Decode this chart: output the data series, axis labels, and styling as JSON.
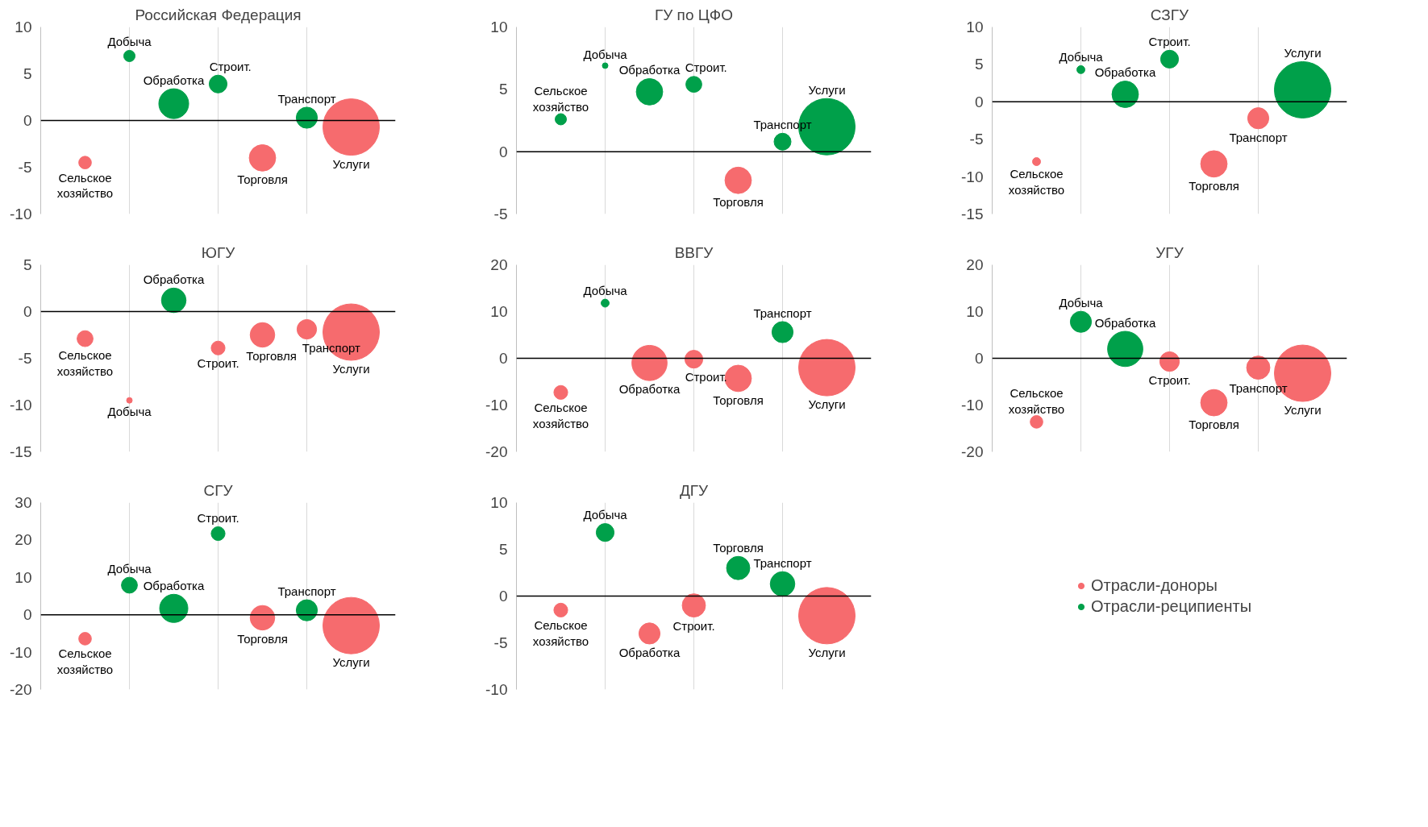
{
  "chart_data": [
    {
      "type": "bubble",
      "title": "Российская Федерация",
      "categories": [
        "Сельское\nхозяйство",
        "Добыча",
        "Обработка",
        "Строит.",
        "Торговля",
        "Транспорт",
        "Услуги"
      ],
      "ylim": [
        -10,
        10
      ],
      "yticks": [
        -10,
        -5,
        0,
        5,
        10
      ],
      "grid": "x",
      "tick_labels": "y",
      "marker": "circle",
      "ref_lines": [
        {
          "axis": "y",
          "value": 0
        }
      ],
      "series": [
        {
          "color": "#f66b6e",
          "values": [
            -4.5,
            null,
            null,
            null,
            -4.0,
            null,
            -0.7
          ],
          "sizes": [
            0.05,
            null,
            null,
            null,
            0.22,
            null,
            1
          ]
        },
        {
          "color": "#00a04a",
          "values": [
            null,
            6.9,
            1.8,
            3.9,
            null,
            0.3,
            null
          ],
          "sizes": [
            null,
            0.04,
            0.28,
            0.1,
            null,
            0.14,
            null
          ]
        }
      ]
    },
    {
      "type": "bubble",
      "title": "ГУ по ЦФО",
      "categories": [
        "Сельское\nхозяйство",
        "Добыча",
        "Обработка",
        "Строит.",
        "Торговля",
        "Транспорт",
        "Услуги"
      ],
      "ylim": [
        -5,
        10
      ],
      "yticks": [
        -5,
        0,
        5,
        10
      ],
      "grid": "x",
      "tick_labels": "y",
      "marker": "circle",
      "ref_lines": [
        {
          "axis": "y",
          "value": 0
        }
      ],
      "series": [
        {
          "color": "#f66b6e",
          "values": [
            null,
            null,
            null,
            null,
            -2.3,
            null,
            null
          ],
          "sizes": [
            null,
            null,
            null,
            null,
            0.22,
            null,
            null
          ]
        },
        {
          "color": "#00a04a",
          "values": [
            2.6,
            6.9,
            4.8,
            5.4,
            null,
            0.8,
            2.0
          ],
          "sizes": [
            0.04,
            0.01,
            0.22,
            0.08,
            null,
            0.09,
            1
          ]
        }
      ]
    },
    {
      "type": "bubble",
      "title": "СЗГУ",
      "categories": [
        "Сельское\nхозяйство",
        "Добыча",
        "Обработка",
        "Строит.",
        "Торговля",
        "Транспорт",
        "Услуги"
      ],
      "ylim": [
        -15,
        10
      ],
      "yticks": [
        -15,
        -10,
        -5,
        0,
        5,
        10
      ],
      "grid": "x",
      "tick_labels": "y",
      "marker": "circle",
      "ref_lines": [
        {
          "axis": "y",
          "value": 0
        }
      ],
      "series": [
        {
          "color": "#f66b6e",
          "values": [
            -8.0,
            null,
            null,
            null,
            -8.3,
            -2.2,
            null
          ],
          "sizes": [
            0.02,
            null,
            null,
            null,
            0.22,
            0.14,
            null
          ]
        },
        {
          "color": "#00a04a",
          "values": [
            null,
            4.3,
            1.0,
            5.7,
            null,
            null,
            1.6
          ],
          "sizes": [
            null,
            0.02,
            0.22,
            0.1,
            null,
            null,
            1
          ]
        }
      ]
    },
    {
      "type": "bubble",
      "title": "ЮГУ",
      "categories": [
        "Сельское\nхозяйство",
        "Добыча",
        "Обработка",
        "Строит.",
        "Торговля",
        "Транспорт",
        "Услуги"
      ],
      "ylim": [
        -15,
        5
      ],
      "yticks": [
        -15,
        -10,
        -5,
        0,
        5
      ],
      "grid": "x",
      "tick_labels": "y",
      "marker": "circle",
      "ref_lines": [
        {
          "axis": "y",
          "value": 0
        }
      ],
      "series": [
        {
          "color": "#f66b6e",
          "values": [
            -2.9,
            -9.5,
            null,
            -3.9,
            -2.5,
            -1.9,
            -2.2
          ],
          "sizes": [
            0.08,
            0.01,
            null,
            0.06,
            0.19,
            0.12,
            1
          ]
        },
        {
          "color": "#00a04a",
          "values": [
            null,
            null,
            1.2,
            null,
            null,
            null,
            null
          ],
          "sizes": [
            null,
            null,
            0.19,
            null,
            null,
            null,
            null
          ]
        }
      ]
    },
    {
      "type": "bubble",
      "title": "ВВГУ",
      "categories": [
        "Сельское\nхозяйство",
        "Добыча",
        "Обработка",
        "Строит.",
        "Торговля",
        "Транспорт",
        "Услуги"
      ],
      "ylim": [
        -20,
        20
      ],
      "yticks": [
        -20,
        -10,
        0,
        10,
        20
      ],
      "grid": "x",
      "tick_labels": "y",
      "marker": "circle",
      "ref_lines": [
        {
          "axis": "y",
          "value": 0
        }
      ],
      "series": [
        {
          "color": "#f66b6e",
          "values": [
            -7.3,
            null,
            -1.0,
            -0.2,
            -4.3,
            null,
            -2.0
          ],
          "sizes": [
            0.06,
            null,
            0.39,
            0.1,
            0.22,
            null,
            1
          ]
        },
        {
          "color": "#00a04a",
          "values": [
            null,
            11.8,
            null,
            null,
            null,
            5.6,
            null
          ],
          "sizes": [
            null,
            0.02,
            null,
            null,
            null,
            0.14,
            null
          ]
        }
      ]
    },
    {
      "type": "bubble",
      "title": "УГУ",
      "categories": [
        "Сельское\nхозяйство",
        "Добыча",
        "Обработка",
        "Строит.",
        "Торговля",
        "Транспорт",
        "Услуги"
      ],
      "ylim": [
        -20,
        20
      ],
      "yticks": [
        -20,
        -10,
        0,
        10,
        20
      ],
      "grid": "x",
      "tick_labels": "y",
      "marker": "circle",
      "ref_lines": [
        {
          "axis": "y",
          "value": 0
        }
      ],
      "series": [
        {
          "color": "#f66b6e",
          "values": [
            -13.6,
            null,
            null,
            -0.7,
            -9.5,
            -2.0,
            -3.2
          ],
          "sizes": [
            0.05,
            null,
            null,
            0.12,
            0.22,
            0.17,
            1
          ]
        },
        {
          "color": "#00a04a",
          "values": [
            null,
            7.8,
            2.0,
            null,
            null,
            null,
            null
          ],
          "sizes": [
            null,
            0.14,
            0.39,
            null,
            null,
            null,
            null
          ]
        }
      ]
    },
    {
      "type": "bubble",
      "title": "СГУ",
      "categories": [
        "Сельское\nхозяйство",
        "Добыча",
        "Обработка",
        "Строит.",
        "Торговля",
        "Транспорт",
        "Услуги"
      ],
      "ylim": [
        -20,
        30
      ],
      "yticks": [
        -20,
        -10,
        0,
        10,
        20,
        30
      ],
      "grid": "x",
      "tick_labels": "y",
      "marker": "circle",
      "ref_lines": [
        {
          "axis": "y",
          "value": 0
        }
      ],
      "series": [
        {
          "color": "#f66b6e",
          "values": [
            -6.4,
            null,
            null,
            null,
            -0.8,
            null,
            -2.9
          ],
          "sizes": [
            0.05,
            null,
            null,
            null,
            0.19,
            null,
            1
          ]
        },
        {
          "color": "#00a04a",
          "values": [
            null,
            7.9,
            1.7,
            21.7,
            null,
            1.2,
            null
          ],
          "sizes": [
            null,
            0.08,
            0.25,
            0.06,
            null,
            0.14,
            null
          ]
        }
      ]
    },
    {
      "type": "bubble",
      "title": "ДГУ",
      "categories": [
        "Сельское\nхозяйство",
        "Добыча",
        "Обработка",
        "Строит.",
        "Торговля",
        "Транспорт",
        "Услуги"
      ],
      "ylim": [
        -10,
        10
      ],
      "yticks": [
        -10,
        -5,
        0,
        5,
        10
      ],
      "grid": "x",
      "tick_labels": "y",
      "marker": "circle",
      "ref_lines": [
        {
          "axis": "y",
          "value": 0
        }
      ],
      "legend": "right",
      "series": [
        {
          "name": "Отрасли-доноры",
          "color": "#f66b6e",
          "values": [
            -1.5,
            null,
            -4.0,
            -1.0,
            null,
            null,
            -2.1
          ],
          "sizes": [
            0.06,
            null,
            0.14,
            0.17,
            null,
            null,
            1
          ]
        },
        {
          "name": "Отрасли-реципиенты",
          "color": "#00a04a",
          "values": [
            null,
            6.8,
            null,
            null,
            3.0,
            1.3,
            null
          ],
          "sizes": [
            null,
            0.1,
            null,
            null,
            0.17,
            0.19,
            null
          ]
        }
      ]
    }
  ]
}
